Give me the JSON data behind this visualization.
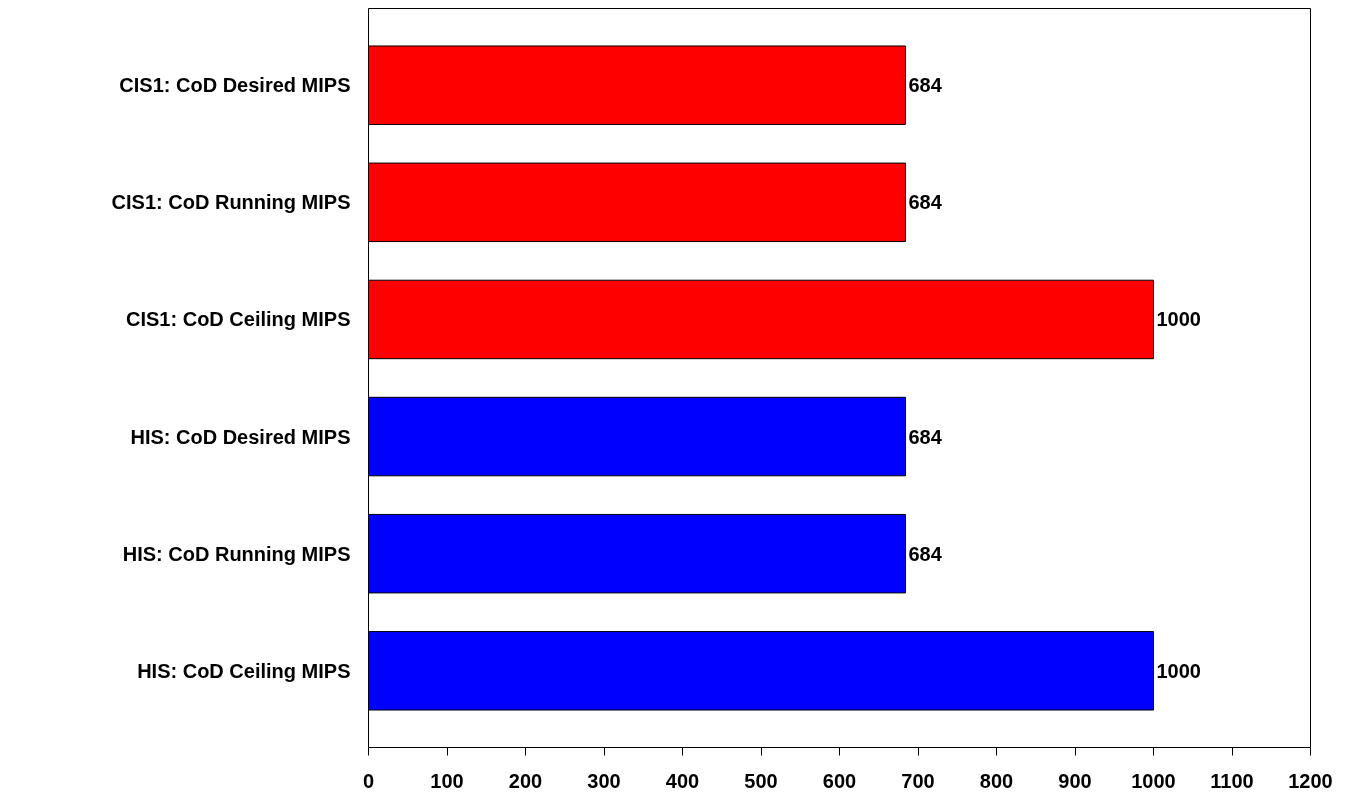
{
  "chart_data": {
    "type": "bar",
    "orientation": "horizontal",
    "categories": [
      "CIS1: CoD Desired MIPS",
      "CIS1: CoD Running MIPS",
      "CIS1: CoD Ceiling MIPS",
      "HIS: CoD Desired MIPS",
      "HIS: CoD Running MIPS",
      "HIS: CoD Ceiling MIPS"
    ],
    "values": [
      684,
      684,
      1000,
      684,
      684,
      1000
    ],
    "colors": [
      "#ff0000",
      "#ff0000",
      "#ff0000",
      "#0000ff",
      "#0000ff",
      "#0000ff"
    ],
    "xlim": [
      0,
      1200
    ],
    "xticks": [
      0,
      100,
      200,
      300,
      400,
      500,
      600,
      700,
      800,
      900,
      1000,
      1100,
      1200
    ],
    "data_labels": true,
    "grid": false
  }
}
